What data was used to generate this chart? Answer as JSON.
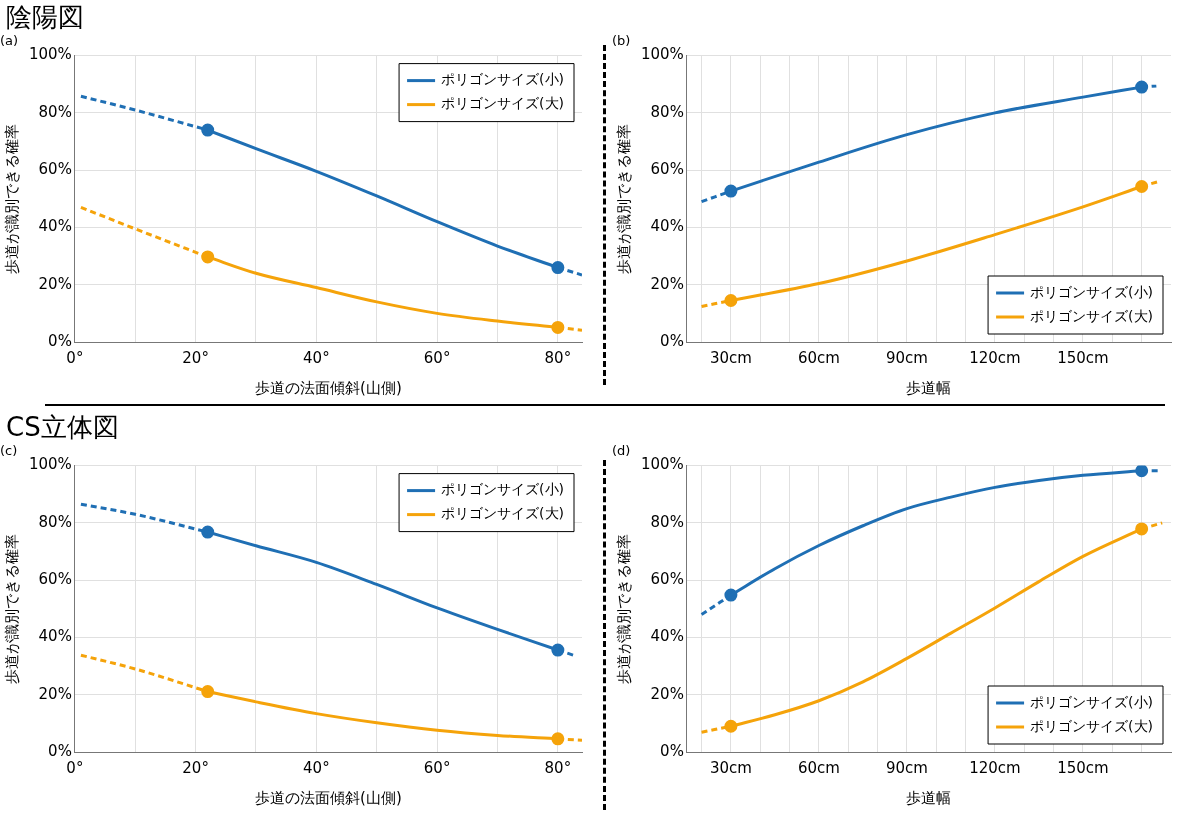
{
  "chart_data": [
    {
      "type": "line",
      "title": "(a)",
      "annotations": [
        "陰陽図"
      ],
      "xlabel": "歩道の法面傾斜(山側)",
      "ylabel": "歩道が識別できる確率",
      "xlim": [
        0,
        84
      ],
      "xticks": [
        {
          "value": 0,
          "label": "0°"
        },
        {
          "value": 10,
          "label": null
        },
        {
          "value": 20,
          "label": "20°"
        },
        {
          "value": 30,
          "label": null
        },
        {
          "value": 40,
          "label": "40°"
        },
        {
          "value": 50,
          "label": null
        },
        {
          "value": 60,
          "label": "60°"
        },
        {
          "value": 70,
          "label": null
        },
        {
          "value": 80,
          "label": "80°"
        }
      ],
      "ylim": [
        0,
        100
      ],
      "yticks": [
        {
          "value": 0,
          "label": "0%"
        },
        {
          "value": 20,
          "label": "20%"
        },
        {
          "value": 40,
          "label": "40%"
        },
        {
          "value": 60,
          "label": "60%"
        },
        {
          "value": 80,
          "label": "80%"
        },
        {
          "value": 100,
          "label": "100%"
        }
      ],
      "grid": true,
      "legend": "top right",
      "series": [
        {
          "name": "ポリゴンサイズ(小)",
          "color": "#1f6fb4",
          "x": [
            22,
            30,
            40,
            50,
            60,
            70,
            80
          ],
          "values": [
            74,
            67.5,
            59.6,
            51,
            42,
            33.5,
            26
          ],
          "line_style": "solid",
          "marker": "none"
        },
        {
          "name": "ポリゴンサイズ(大)",
          "color": "#f5a30a",
          "x": [
            22,
            30,
            40,
            50,
            60,
            70,
            80
          ],
          "values": [
            29.7,
            24,
            19,
            14,
            10,
            7.3,
            5.1
          ],
          "line_style": "solid",
          "marker": "none"
        },
        {
          "color": "#1f6fb4",
          "x": [
            1,
            10,
            22
          ],
          "values": [
            85.8,
            81,
            74
          ],
          "line_style": "dashed",
          "marker": "none"
        },
        {
          "color": "#1f6fb4",
          "x": [
            80,
            84
          ],
          "values": [
            26,
            23.4
          ],
          "line_style": "dashed",
          "marker": "none"
        },
        {
          "color": "#f5a30a",
          "x": [
            1,
            10,
            22
          ],
          "values": [
            47,
            39.5,
            29.7
          ],
          "line_style": "dashed",
          "marker": "none"
        },
        {
          "color": "#f5a30a",
          "x": [
            80,
            84
          ],
          "values": [
            5.1,
            4.1
          ],
          "line_style": "dashed",
          "marker": "none"
        },
        {
          "type": "scatter",
          "color": "#1f6fb4",
          "x": [
            22,
            80
          ],
          "values": [
            74,
            26
          ],
          "marker": "circle"
        },
        {
          "type": "scatter",
          "color": "#f5a30a",
          "x": [
            22,
            80
          ],
          "values": [
            29.7,
            5.1
          ],
          "marker": "circle"
        }
      ]
    },
    {
      "type": "line",
      "title": "(b)",
      "xlabel": "歩道幅",
      "ylabel": "歩道が識別できる確率",
      "xlim": [
        15,
        180
      ],
      "xticks": [
        {
          "value": 20,
          "label": null
        },
        {
          "value": 30,
          "label": "30cm"
        },
        {
          "value": 40,
          "label": null
        },
        {
          "value": 50,
          "label": null
        },
        {
          "value": 60,
          "label": "60cm"
        },
        {
          "value": 70,
          "label": null
        },
        {
          "value": 80,
          "label": null
        },
        {
          "value": 90,
          "label": "90cm"
        },
        {
          "value": 100,
          "label": null
        },
        {
          "value": 110,
          "label": null
        },
        {
          "value": 120,
          "label": "120cm"
        },
        {
          "value": 130,
          "label": null
        },
        {
          "value": 140,
          "label": null
        },
        {
          "value": 150,
          "label": "150cm"
        },
        {
          "value": 160,
          "label": null
        },
        {
          "value": 170,
          "label": null
        }
      ],
      "ylim": [
        0,
        100
      ],
      "yticks": [
        {
          "value": 0,
          "label": "0%"
        },
        {
          "value": 20,
          "label": "20%"
        },
        {
          "value": 40,
          "label": "40%"
        },
        {
          "value": 60,
          "label": "60%"
        },
        {
          "value": 80,
          "label": "80%"
        },
        {
          "value": 100,
          "label": "100%"
        }
      ],
      "grid": true,
      "legend": "bottom right",
      "series": [
        {
          "name": "ポリゴンサイズ(小)",
          "color": "#1f6fb4",
          "x": [
            30,
            60,
            90,
            120,
            150,
            170
          ],
          "values": [
            52.7,
            62.8,
            72.4,
            80,
            85.5,
            89
          ],
          "line_style": "solid",
          "marker": "none"
        },
        {
          "name": "ポリゴンサイズ(大)",
          "color": "#f5a30a",
          "x": [
            30,
            60,
            90,
            120,
            150,
            170
          ],
          "values": [
            14.5,
            20.4,
            28.3,
            37.5,
            47.2,
            54.3
          ],
          "line_style": "solid",
          "marker": "none"
        },
        {
          "color": "#1f6fb4",
          "x": [
            20,
            30
          ],
          "values": [
            49,
            52.7
          ],
          "line_style": "dashed",
          "marker": "none"
        },
        {
          "color": "#1f6fb4",
          "x": [
            170,
            175
          ],
          "values": [
            89,
            89.4
          ],
          "line_style": "dashed",
          "marker": "none"
        },
        {
          "color": "#f5a30a",
          "x": [
            20,
            30
          ],
          "values": [
            12.4,
            14.5
          ],
          "line_style": "dashed",
          "marker": "none"
        },
        {
          "color": "#f5a30a",
          "x": [
            170,
            176
          ],
          "values": [
            54.3,
            56.1
          ],
          "line_style": "dashed",
          "marker": "none"
        },
        {
          "type": "scatter",
          "color": "#1f6fb4",
          "x": [
            30,
            170
          ],
          "values": [
            52.7,
            89
          ],
          "marker": "circle"
        },
        {
          "type": "scatter",
          "color": "#f5a30a",
          "x": [
            30,
            170
          ],
          "values": [
            14.5,
            54.3
          ],
          "marker": "circle"
        }
      ]
    },
    {
      "type": "line",
      "title": "(c)",
      "annotations": [
        "CS立体図"
      ],
      "xlabel": "歩道の法面傾斜(山側)",
      "ylabel": "歩道が識別できる確率",
      "xlim": [
        0,
        84
      ],
      "xticks": [
        {
          "value": 0,
          "label": "0°"
        },
        {
          "value": 10,
          "label": null
        },
        {
          "value": 20,
          "label": "20°"
        },
        {
          "value": 30,
          "label": null
        },
        {
          "value": 40,
          "label": "40°"
        },
        {
          "value": 50,
          "label": null
        },
        {
          "value": 60,
          "label": "60°"
        },
        {
          "value": 70,
          "label": null
        },
        {
          "value": 80,
          "label": "80°"
        }
      ],
      "ylim": [
        0,
        100
      ],
      "yticks": [
        {
          "value": 0,
          "label": "0%"
        },
        {
          "value": 20,
          "label": "20%"
        },
        {
          "value": 40,
          "label": "40%"
        },
        {
          "value": 60,
          "label": "60%"
        },
        {
          "value": 80,
          "label": "80%"
        },
        {
          "value": 100,
          "label": "100%"
        }
      ],
      "grid": true,
      "legend": "top right",
      "series": [
        {
          "name": "ポリゴンサイズ(小)",
          "color": "#1f6fb4",
          "x": [
            22,
            30,
            40,
            50,
            60,
            70,
            80
          ],
          "values": [
            76.8,
            72,
            66.2,
            58.5,
            50.3,
            42.8,
            35.6
          ],
          "line_style": "solid",
          "marker": "none"
        },
        {
          "name": "ポリゴンサイズ(大)",
          "color": "#f5a30a",
          "x": [
            22,
            30,
            40,
            50,
            60,
            70,
            80
          ],
          "values": [
            21.1,
            17.5,
            13.4,
            10.2,
            7.6,
            5.8,
            4.6
          ],
          "line_style": "solid",
          "marker": "none"
        },
        {
          "color": "#1f6fb4",
          "x": [
            1,
            10,
            22
          ],
          "values": [
            86.5,
            83,
            76.8
          ],
          "line_style": "dashed",
          "marker": "none"
        },
        {
          "color": "#1f6fb4",
          "x": [
            80,
            83
          ],
          "values": [
            35.6,
            33.5
          ],
          "line_style": "dashed",
          "marker": "none"
        },
        {
          "color": "#f5a30a",
          "x": [
            1,
            10,
            22
          ],
          "values": [
            33.8,
            29,
            21.1
          ],
          "line_style": "dashed",
          "marker": "none"
        },
        {
          "color": "#f5a30a",
          "x": [
            80,
            84
          ],
          "values": [
            4.6,
            4.1
          ],
          "line_style": "dashed",
          "marker": "none"
        },
        {
          "type": "scatter",
          "color": "#1f6fb4",
          "x": [
            22,
            80
          ],
          "values": [
            76.8,
            35.6
          ],
          "marker": "circle"
        },
        {
          "type": "scatter",
          "color": "#f5a30a",
          "x": [
            22,
            80
          ],
          "values": [
            21.1,
            4.6
          ],
          "marker": "circle"
        }
      ]
    },
    {
      "type": "line",
      "title": "(d)",
      "xlabel": "歩道幅",
      "ylabel": "歩道が識別できる確率",
      "xlim": [
        15,
        180
      ],
      "xticks": [
        {
          "value": 20,
          "label": null
        },
        {
          "value": 30,
          "label": "30cm"
        },
        {
          "value": 40,
          "label": null
        },
        {
          "value": 50,
          "label": null
        },
        {
          "value": 60,
          "label": "60cm"
        },
        {
          "value": 70,
          "label": null
        },
        {
          "value": 80,
          "label": null
        },
        {
          "value": 90,
          "label": "90cm"
        },
        {
          "value": 100,
          "label": null
        },
        {
          "value": 110,
          "label": null
        },
        {
          "value": 120,
          "label": "120cm"
        },
        {
          "value": 130,
          "label": null
        },
        {
          "value": 140,
          "label": null
        },
        {
          "value": 150,
          "label": "150cm"
        },
        {
          "value": 160,
          "label": null
        },
        {
          "value": 170,
          "label": null
        }
      ],
      "ylim": [
        0,
        100
      ],
      "yticks": [
        {
          "value": 0,
          "label": "0%"
        },
        {
          "value": 20,
          "label": "20%"
        },
        {
          "value": 40,
          "label": "40%"
        },
        {
          "value": 60,
          "label": "60%"
        },
        {
          "value": 80,
          "label": "80%"
        },
        {
          "value": 100,
          "label": "100%"
        }
      ],
      "grid": true,
      "legend": "bottom right",
      "series": [
        {
          "name": "ポリゴンサイズ(小)",
          "color": "#1f6fb4",
          "x": [
            30,
            45,
            60,
            75,
            90,
            105,
            120,
            135,
            150,
            170
          ],
          "values": [
            54.8,
            64,
            72.1,
            79,
            85,
            89,
            92.4,
            94.8,
            96.6,
            98.2
          ],
          "line_style": "solid",
          "marker": "none"
        },
        {
          "name": "ポリゴンサイズ(大)",
          "color": "#f5a30a",
          "x": [
            30,
            45,
            60,
            75,
            90,
            105,
            120,
            135,
            150,
            170
          ],
          "values": [
            9,
            13,
            17.9,
            24.5,
            32.7,
            41.5,
            50.3,
            59.5,
            68.3,
            77.9
          ],
          "line_style": "solid",
          "marker": "none"
        },
        {
          "color": "#1f6fb4",
          "x": [
            20,
            30
          ],
          "values": [
            48,
            54.8
          ],
          "line_style": "dashed",
          "marker": "none"
        },
        {
          "color": "#1f6fb4",
          "x": [
            170,
            176
          ],
          "values": [
            98.2,
            98.2
          ],
          "line_style": "dashed",
          "marker": "none"
        },
        {
          "color": "#f5a30a",
          "x": [
            20,
            30
          ],
          "values": [
            6.9,
            9
          ],
          "line_style": "dashed",
          "marker": "none"
        },
        {
          "color": "#f5a30a",
          "x": [
            170,
            177
          ],
          "values": [
            77.9,
            80
          ],
          "line_style": "dashed",
          "marker": "none"
        },
        {
          "type": "scatter",
          "color": "#1f6fb4",
          "x": [
            30,
            170
          ],
          "values": [
            54.8,
            98.2
          ],
          "marker": "circle"
        },
        {
          "type": "scatter",
          "color": "#f5a30a",
          "x": [
            30,
            170
          ],
          "values": [
            9,
            77.9
          ],
          "marker": "circle"
        }
      ]
    }
  ]
}
